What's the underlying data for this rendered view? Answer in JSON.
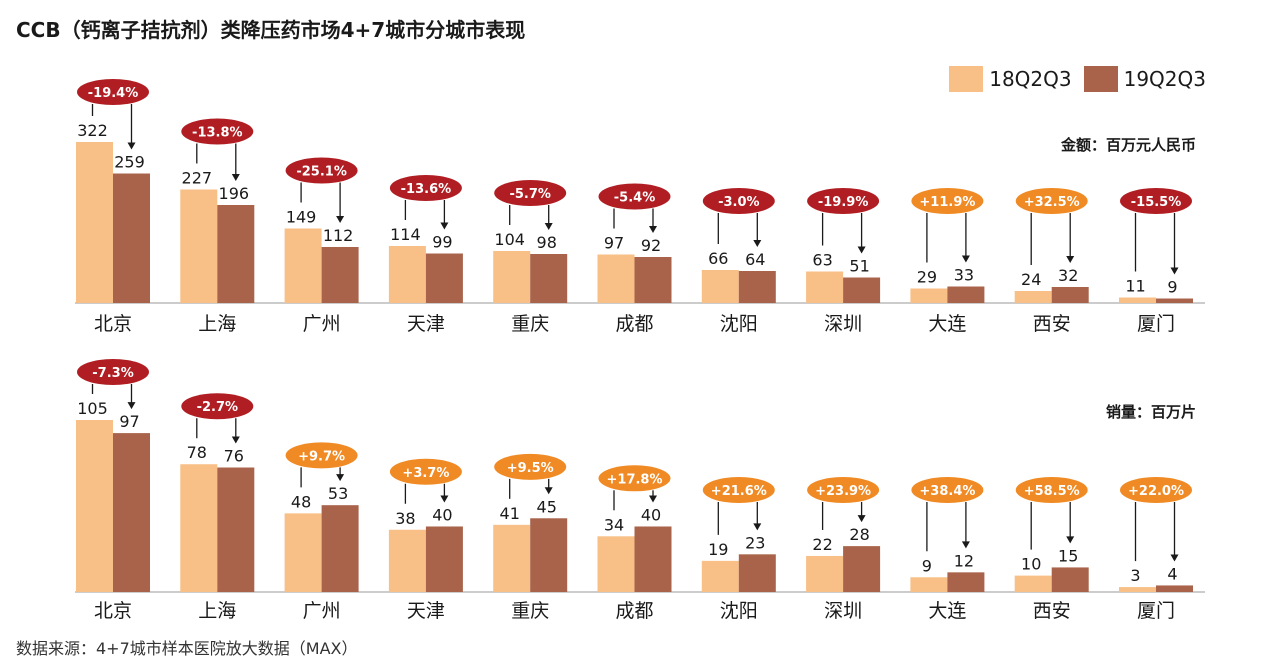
{
  "title": "CCB（钙离子拮抗剂）类降压药市场4+7城市分城市表现",
  "source": "数据来源：4+7城市样本医院放大数据（MAX）",
  "legend": [
    {
      "name": "18Q2Q3",
      "color": "#f8bf86"
    },
    {
      "name": "19Q2Q3",
      "color": "#a8634a"
    }
  ],
  "colors": {
    "decline": "#b01e23",
    "growth": "#f08a24",
    "bar_a": "#f8bf86",
    "bar_b": "#a8634a",
    "axis": "#999999"
  },
  "chart_data": [
    {
      "type": "bar",
      "unit_label": "金额：百万元人民币",
      "categories": [
        "北京",
        "上海",
        "广州",
        "天津",
        "重庆",
        "成都",
        "沈阳",
        "深圳",
        "大连",
        "西安",
        "厦门"
      ],
      "series": [
        {
          "name": "18Q2Q3",
          "values": [
            322,
            227,
            149,
            114,
            104,
            97,
            66,
            63,
            29,
            24,
            11
          ]
        },
        {
          "name": "19Q2Q3",
          "values": [
            259,
            196,
            112,
            99,
            98,
            92,
            64,
            51,
            33,
            32,
            9
          ]
        }
      ],
      "changes": [
        "-19.4%",
        "-13.8%",
        "-25.1%",
        "-13.6%",
        "-5.7%",
        "-5.4%",
        "-3.0%",
        "-19.9%",
        "+11.9%",
        "+32.5%",
        "-15.5%"
      ]
    },
    {
      "type": "bar",
      "unit_label": "销量：百万片",
      "categories": [
        "北京",
        "上海",
        "广州",
        "天津",
        "重庆",
        "成都",
        "沈阳",
        "深圳",
        "大连",
        "西安",
        "厦门"
      ],
      "series": [
        {
          "name": "18Q2Q3",
          "values": [
            105,
            78,
            48,
            38,
            41,
            34,
            19,
            22,
            9,
            10,
            3
          ]
        },
        {
          "name": "19Q2Q3",
          "values": [
            97,
            76,
            53,
            40,
            45,
            40,
            23,
            28,
            12,
            15,
            4
          ]
        }
      ],
      "changes": [
        "-7.3%",
        "-2.7%",
        "+9.7%",
        "+3.7%",
        "+9.5%",
        "+17.8%",
        "+21.6%",
        "+23.9%",
        "+38.4%",
        "+58.5%",
        "+22.0%"
      ]
    }
  ]
}
